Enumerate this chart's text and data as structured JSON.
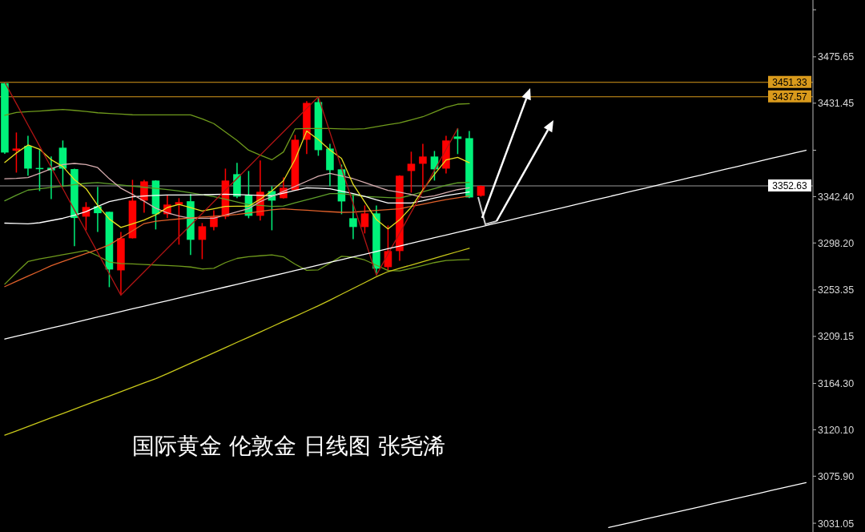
{
  "chart_data": {
    "type": "candlestick",
    "title": "国际黄金 伦敦金 日线图 张尧浠",
    "categories": [
      null,
      null,
      null,
      null,
      null,
      null,
      null,
      null,
      null,
      null,
      null,
      null,
      null,
      null,
      null,
      null,
      null,
      null,
      null,
      null,
      null,
      null,
      null,
      null,
      null,
      null,
      null,
      null,
      null,
      null,
      null,
      null,
      null,
      null,
      null,
      null,
      null,
      null,
      null,
      null,
      null,
      null,
      null,
      null,
      null,
      null,
      null,
      null,
      null,
      null,
      null,
      null,
      null,
      null,
      null,
      null,
      null,
      null,
      null,
      null,
      null,
      null,
      null,
      null,
      null,
      null,
      null,
      null,
      null,
      null
    ],
    "ohlc": [
      [
        3450.5,
        3451.3,
        3383.1,
        3384.4
      ],
      [
        3386.2,
        3403.5,
        3365.3,
        3388.2
      ],
      [
        3390.7,
        3400.4,
        3362.3,
        3369.1
      ],
      [
        3369.7,
        3386.9,
        3347.7,
        3368.6
      ],
      [
        3369.9,
        3380.6,
        3340.1,
        3367.4
      ],
      [
        3389.0,
        3395.9,
        3351.6,
        3369.1
      ],
      [
        3368.6,
        3369.0,
        3295.1,
        3322.0
      ],
      [
        3323.3,
        3337.1,
        3310.3,
        3332.5
      ],
      [
        3333.2,
        3351.6,
        3308.8,
        3326.6
      ],
      [
        3327.9,
        3328.0,
        3256.1,
        3272.9
      ],
      [
        3272.1,
        3308.8,
        3248.5,
        3302.7
      ],
      [
        3302.7,
        3358.4,
        3302.5,
        3338.6
      ],
      [
        3338.6,
        3358.4,
        3327.1,
        3356.9
      ],
      [
        3357.7,
        3358.0,
        3311.1,
        3325.6
      ],
      [
        3325.6,
        3343.9,
        3321.8,
        3334.8
      ],
      [
        3334.8,
        3340.9,
        3296.6,
        3337.1
      ],
      [
        3338.0,
        3344.7,
        3286.7,
        3301.2
      ],
      [
        3301.2,
        3317.2,
        3282.8,
        3314.1
      ],
      [
        3313.4,
        3329.4,
        3310.3,
        3323.3
      ],
      [
        3323.3,
        3369.1,
        3321.0,
        3357.7
      ],
      [
        3363.8,
        3374.5,
        3340.9,
        3342.4
      ],
      [
        3343.9,
        3366.8,
        3321.8,
        3324.1
      ],
      [
        3324.1,
        3376.8,
        3319.5,
        3347.0
      ],
      [
        3347.7,
        3352.3,
        3310.3,
        3338.6
      ],
      [
        3340.9,
        3360.7,
        3340.5,
        3350.8
      ],
      [
        3348.5,
        3401.2,
        3348.0,
        3396.6
      ],
      [
        3396.6,
        3433.3,
        3382.9,
        3431.7
      ],
      [
        3432.5,
        3437.6,
        3381.3,
        3386.7
      ],
      [
        3388.2,
        3392.8,
        3352.3,
        3367.6
      ],
      [
        3368.4,
        3372.9,
        3325.6,
        3337.8
      ],
      [
        3321.8,
        3344.7,
        3301.9,
        3313.4
      ],
      [
        3313.4,
        3334.0,
        3307.3,
        3326.4
      ],
      [
        3326.4,
        3334.0,
        3267.6,
        3273.7
      ],
      [
        3275.2,
        3314.9,
        3272.1,
        3290.5
      ],
      [
        3290.5,
        3362.8,
        3281.3,
        3362.3
      ],
      [
        3366.8,
        3385.2,
        3346.2,
        3373.7
      ],
      [
        3373.7,
        3392.8,
        3348.5,
        3380.6
      ],
      [
        3380.6,
        3385.9,
        3357.7,
        3368.4
      ],
      [
        3369.1,
        3400.4,
        3364.5,
        3395.9
      ],
      [
        3399.7,
        3407.3,
        3382.9,
        3397.4
      ],
      [
        3398.1,
        3405.0,
        3340.9,
        3341.6
      ],
      [
        3343.2,
        3353.0,
        3342.4,
        3352.63
      ],
      null,
      null,
      null,
      null,
      null,
      null,
      null,
      null,
      null,
      null,
      null,
      null,
      null,
      null,
      null,
      null,
      null,
      null,
      null,
      null,
      null,
      null,
      null,
      null,
      null,
      null,
      null,
      null
    ],
    "colors": [
      "#00f27a",
      "#ff0000",
      "#00f27a",
      "#00f27a",
      "#00f27a",
      "#00f27a",
      "#00f27a",
      "#ff0000",
      "#00f27a",
      "#00f27a",
      "#ff0000",
      "#ff0000",
      "#ff0000",
      "#00f27a",
      "#ff0000",
      "#ff0000",
      "#00f27a",
      "#ff0000",
      "#ff0000",
      "#ff0000",
      "#00f27a",
      "#00f27a",
      "#ff0000",
      "#00f27a",
      "#ff0000",
      "#ff0000",
      "#ff0000",
      "#00f27a",
      "#00f27a",
      "#00f27a",
      "#00f27a",
      "#ff0000",
      "#00f27a",
      "#ff0000",
      "#ff0000",
      "#ff0000",
      "#ff0000",
      "#00f27a",
      "#ff0000",
      "#00f27a",
      "#00f27a",
      "#ff0000",
      null,
      null,
      null,
      null,
      null,
      null,
      null,
      null,
      null,
      null,
      null,
      null,
      null,
      null,
      null,
      null,
      null,
      null,
      null,
      null,
      null,
      null,
      null,
      null,
      null,
      null,
      null,
      null
    ],
    "series": [
      {
        "type": "line",
        "color": "#6f9a1c",
        "values": [
          3420,
          3422.6,
          3423.3,
          3424,
          3424.8,
          3425.5,
          3424.6,
          3423.5,
          3422.3,
          3421.6,
          3421,
          3420.4,
          3420.3,
          3420.3,
          3420.3,
          3420.3,
          3420.3,
          3416.5,
          3412,
          3404,
          3396,
          3386.7,
          3382,
          3377.5,
          3385,
          3407,
          3407.3,
          3407.3,
          3407.3,
          3407,
          3406.7,
          3407.2,
          3409,
          3411,
          3412.7,
          3415.5,
          3418.5,
          3423,
          3427.5,
          3430.5,
          3431,
          null,
          null,
          null,
          null,
          null,
          null,
          null,
          null,
          null,
          null,
          null,
          null,
          null,
          null,
          null,
          null,
          null,
          null,
          null,
          null,
          null,
          null,
          null,
          null,
          null,
          null,
          null,
          null,
          null
        ]
      },
      {
        "type": "line",
        "color": "#6f9a1c",
        "values": [
          3259,
          3270,
          3280.5,
          3283,
          3285,
          3287,
          3289,
          3291,
          3286,
          3280,
          3278.6,
          3278.2,
          3277.7,
          3277.2,
          3276.7,
          3276.2,
          3275.3,
          3273.4,
          3274,
          3279.5,
          3283.5,
          3285.1,
          3286,
          3286.8,
          3285,
          3278,
          3272.2,
          3272.6,
          3279,
          3285.5,
          3284.7,
          3282,
          3277,
          3272,
          3271.5,
          3274,
          3276.8,
          3279.5,
          3281.5,
          3282,
          3282.5,
          null,
          null,
          null,
          null,
          null,
          null,
          null,
          null,
          null,
          null,
          null,
          null,
          null,
          null,
          null,
          null,
          null,
          null,
          null,
          null,
          null,
          null,
          null,
          null,
          null,
          null,
          null,
          null,
          null
        ]
      },
      {
        "type": "line",
        "color": "#5f9e2a",
        "values": [
          3338.4,
          3343.7,
          3348.6,
          3349.9,
          3351.2,
          3352.4,
          3353.8,
          3355.1,
          3355.8,
          3354.7,
          3353.5,
          3352.4,
          3351.3,
          3350.2,
          3349.1,
          3347.8,
          3346,
          3344.2,
          3342.4,
          3339.9,
          3337.3,
          3334.8,
          3334,
          3333.1,
          3333.4,
          3336.4,
          3339.4,
          3342.3,
          3345.3,
          3345.2,
          3343.9,
          3342.5,
          3342,
          3341.5,
          3341,
          3343.7,
          3346.9,
          3350,
          3353.2,
          3355.5,
          3356,
          null,
          null,
          null,
          null,
          null,
          null,
          null,
          null,
          null,
          null,
          null,
          null,
          null,
          null,
          null,
          null,
          null,
          null,
          null,
          null,
          null,
          null,
          null,
          null,
          null,
          null,
          null,
          null,
          null
        ]
      },
      {
        "type": "line",
        "color": "#ffffff",
        "values": [
          3317.1,
          3316.8,
          3316.4,
          3317.5,
          3319.6,
          3321.7,
          3324.6,
          3328.1,
          3333.1,
          3337.6,
          3339.9,
          3342.2,
          3343,
          3343.6,
          3343.9,
          3343.9,
          3344,
          3344.2,
          3344.4,
          3344.7,
          3344.3,
          3343.9,
          3343.5,
          3343.2,
          3345.7,
          3348.3,
          3350.8,
          3350.4,
          3349.8,
          3347.5,
          3345.3,
          3342.6,
          3339.3,
          3336.3,
          3336.3,
          3336.3,
          3338.4,
          3341.1,
          3343.3,
          3345.1,
          3346.8,
          null,
          null,
          null,
          null,
          null,
          null,
          null,
          null,
          null,
          null,
          null,
          null,
          null,
          null,
          null,
          null,
          null,
          null,
          null,
          null,
          null,
          null,
          null,
          null,
          null,
          null,
          null,
          null,
          null
        ]
      },
      {
        "type": "line",
        "color": "#d9aeb0",
        "values": [
          3359.4,
          3359.8,
          3360.6,
          3364.5,
          3369,
          3373,
          3374,
          3373,
          3370,
          3359.4,
          3350.4,
          3344.5,
          3338,
          3331.3,
          3326.9,
          3323.9,
          3321.8,
          3321.8,
          3321.8,
          3324.8,
          3327.9,
          3330.9,
          3337.7,
          3342.5,
          3347.3,
          3352.1,
          3357,
          3361.9,
          3364.6,
          3362.1,
          3359.5,
          3355.7,
          3351.9,
          3348.3,
          3346.6,
          3344.4,
          3341.6,
          3343.1,
          3346.3,
          3349,
          3350.8,
          null,
          null,
          null,
          null,
          null,
          null,
          null,
          null,
          null,
          null,
          null,
          null,
          null,
          null,
          null,
          null,
          null,
          null,
          null,
          null,
          null,
          null,
          null,
          null,
          null,
          null,
          null,
          null,
          null
        ]
      },
      {
        "type": "line",
        "color": "#e0602a",
        "values": [
          3256.6,
          3261.6,
          3266.6,
          3271.5,
          3276.5,
          3280.6,
          3284.4,
          3288.2,
          3292,
          3296.4,
          3303.2,
          3309.9,
          3316.7,
          3318.9,
          3320,
          3321.1,
          3322,
          3322.9,
          3323.7,
          3324.5,
          3325.4,
          3326.7,
          3328.2,
          3329.8,
          3330.7,
          3330,
          3329.4,
          3328.7,
          3328,
          3327.4,
          3327.6,
          3328.4,
          3329.2,
          3330,
          3330.8,
          3333.1,
          3335.2,
          3337.5,
          3339.5,
          3341.3,
          3343,
          null,
          null,
          null,
          null,
          null,
          null,
          null,
          null,
          null,
          null,
          null,
          null,
          null,
          null,
          null,
          null,
          null,
          null,
          null,
          null,
          null,
          null,
          null,
          null,
          null,
          null,
          null,
          null,
          null
        ]
      },
      {
        "type": "line",
        "color": "#e6e020",
        "values": [
          3375,
          3384,
          3391.6,
          3387.5,
          3377.5,
          3371,
          3358.5,
          3350,
          3334,
          3321,
          3313,
          3316.5,
          3320,
          3325,
          3332,
          3335,
          3331.9,
          3328.7,
          3330.8,
          3333,
          3333.2,
          3333.2,
          3339.9,
          3347.8,
          3357.6,
          3377.8,
          3405,
          3396.8,
          3386.8,
          3378.8,
          3354,
          3337.2,
          3320.5,
          3311.5,
          3320.3,
          3332.3,
          3348.9,
          3363.6,
          3377.4,
          3379.8,
          3374.7,
          null,
          null,
          null,
          null,
          null,
          null,
          null,
          null,
          null,
          null,
          null,
          null,
          null,
          null,
          null,
          null,
          null,
          null,
          null,
          null,
          null,
          null,
          null,
          null,
          null,
          null,
          null,
          null,
          null
        ]
      },
      {
        "type": "line",
        "color": "#c8c81a",
        "values": [
          3115,
          3119.1,
          3123.3,
          3127.4,
          3131.6,
          3135.7,
          3139.9,
          3144,
          3148.2,
          3152.3,
          3156.5,
          3160.6,
          3164.8,
          3168.9,
          3173.6,
          3178.6,
          3183.6,
          3188.5,
          3193.5,
          3198.5,
          3203.5,
          3208.4,
          3213.4,
          3218.4,
          3223.4,
          3228.3,
          3233.3,
          3238.3,
          3243.7,
          3249.3,
          3254.9,
          3260.4,
          3266,
          3270.9,
          3274,
          3277.2,
          3280.4,
          3283.6,
          3286.8,
          3290,
          3293.2,
          null,
          null,
          null,
          null,
          null,
          null,
          null,
          null,
          null,
          null,
          null,
          null,
          null,
          null,
          null,
          null,
          null,
          null,
          null,
          null,
          null,
          null,
          null,
          null,
          null,
          null,
          null,
          null,
          null
        ]
      },
      {
        "type": "line",
        "color": "#b01414",
        "values": [
          3451.3,
          3431,
          3410.7,
          3390.5,
          3370.2,
          3349.9,
          3329.6,
          3309.3,
          3289.1,
          3268.8,
          3248.5,
          3259.6,
          3270.7,
          3281.9,
          3293,
          3304.1,
          3315.2,
          3326.3,
          3337.5,
          3348.6,
          3359.7,
          3370.8,
          3381.9,
          3393.1,
          3404.2,
          3415.3,
          3426.4,
          3437.6,
          3403.6,
          3369.6,
          3335.6,
          3301.6,
          3267.6,
          3287.6,
          3307.5,
          3327.5,
          3347.5,
          3367.4,
          3387.4,
          3407.3,
          null,
          null,
          null,
          null,
          null,
          null,
          null,
          null,
          null,
          null,
          null,
          null,
          null,
          null,
          null,
          null,
          null,
          null,
          null,
          null,
          null,
          null,
          null,
          null,
          null,
          null,
          null,
          null,
          null,
          null
        ]
      },
      {
        "type": "line",
        "color": "#ffffff",
        "values": [
          3206.7,
          3209.3,
          3211.9,
          3214.5,
          3217.1,
          3219.7,
          3222.3,
          3224.9,
          3227.6,
          3230.2,
          3232.8,
          3235.4,
          3238.0,
          3240.6,
          3243.2,
          3245.8,
          3248.4,
          3251.0,
          3253.6,
          3256.2,
          3258.8,
          3261.4,
          3264.1,
          3266.7,
          3269.3,
          3271.9,
          3274.5,
          3277.1,
          3279.7,
          3282.3,
          3284.9,
          3287.5,
          3290.1,
          3292.7,
          3295.3,
          3297.9,
          3300.6,
          3303.2,
          3305.8,
          3308.4,
          3311.0,
          3313.6,
          3316.2,
          3318.8,
          3321.4,
          3324.0,
          3326.6,
          3329.2,
          3331.8,
          3334.4,
          3337.1,
          3339.7,
          3342.3,
          3344.9,
          3347.5,
          3350.1,
          3352.7,
          3355.3,
          3357.9,
          3360.5,
          3363.1,
          3365.7,
          3368.3,
          3370.9,
          3373.6,
          3376.2,
          3378.8,
          3381.4,
          3384.0,
          3386.6
        ]
      },
      {
        "type": "line",
        "color": "#ffffff",
        "values": [
          null,
          null,
          null,
          null,
          null,
          null,
          null,
          null,
          null,
          null,
          null,
          null,
          null,
          null,
          null,
          null,
          null,
          null,
          null,
          null,
          null,
          null,
          null,
          null,
          null,
          null,
          null,
          null,
          null,
          null,
          null,
          null,
          null,
          null,
          null,
          null,
          null,
          null,
          null,
          null,
          null,
          null,
          null,
          null,
          null,
          null,
          null,
          null,
          null,
          null,
          null,
          null,
          3027.0,
          3029.5,
          3032.0,
          3034.6,
          3037.1,
          3039.6,
          3042.1,
          3044.6,
          3047.1,
          3049.7,
          3052.2,
          3054.7,
          3057.2,
          3059.7,
          3062.3,
          3064.8,
          3067.3,
          3069.8
        ]
      }
    ],
    "ref_lines": [
      {
        "axis": "y",
        "value": 3451.33,
        "label": "3451.33",
        "color": "#d99a1c"
      },
      {
        "axis": "y",
        "value": 3437.57,
        "label": "3437.57",
        "color": "#d99a1c"
      },
      {
        "axis": "y",
        "value": 3352.63,
        "label": "3352.63",
        "color": "#9a9a9a"
      }
    ],
    "ylim": [
      3022.7,
      3529.8
    ],
    "yticks": [
      3031.05,
      {
        "value": 3075.9,
        "label": "3075.90"
      },
      {
        "value": 3120.1,
        "label": "3120.10"
      },
      {
        "value": 3164.3,
        "label": "3164.30"
      },
      3209.15,
      3253.35,
      {
        "value": 3298.2,
        "label": "3298.20"
      },
      {
        "value": 3342.4,
        "label": "3342.40"
      },
      {
        "value": 3386.6,
        "label": null
      },
      3431.45,
      3475.65,
      {
        "value": 3520.5,
        "label": null
      }
    ],
    "grid": false,
    "line_style": "solid",
    "marker": "none"
  }
}
